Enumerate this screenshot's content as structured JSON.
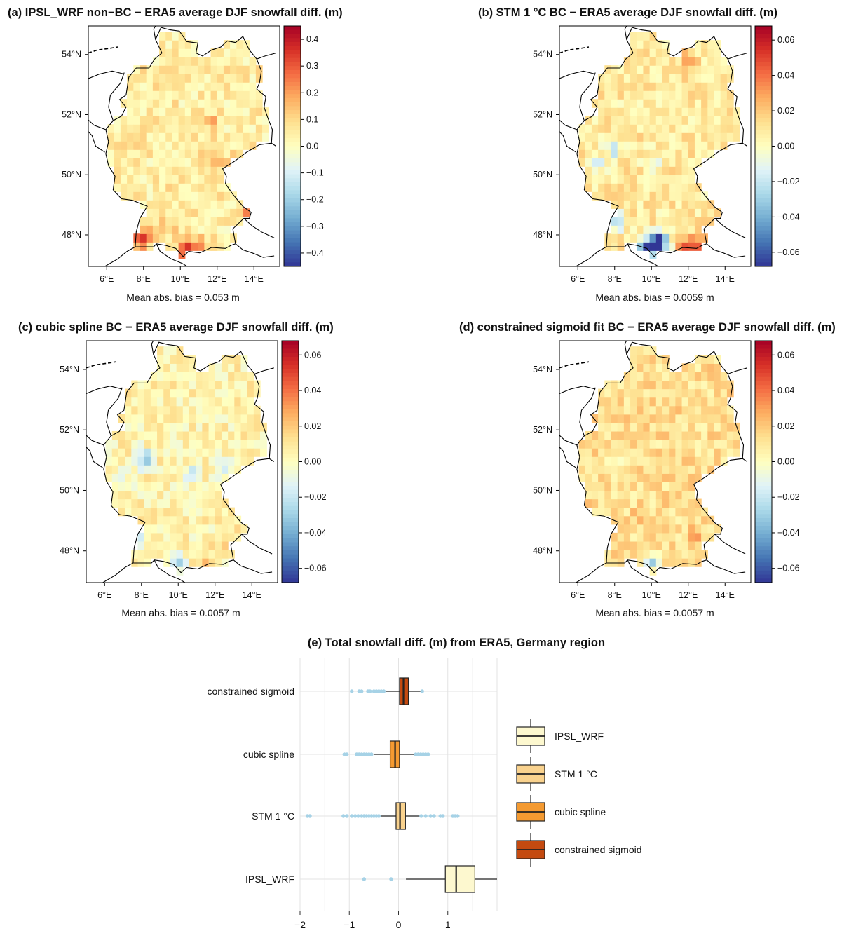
{
  "chart_data": [
    {
      "type": "heatmap",
      "panel": "a",
      "title": "(a) IPSL_WRF non−BC − ERA5 average DJF snowfall diff. (m)",
      "x_ticks": [
        "6°E",
        "8°E",
        "10°E",
        "12°E",
        "14°E"
      ],
      "y_ticks": [
        "48°N",
        "50°N",
        "52°N",
        "54°N"
      ],
      "colorbar_ticks": [
        0.4,
        0.3,
        0.2,
        0.1,
        0.0,
        -0.1,
        -0.2,
        -0.3,
        -0.4
      ],
      "colorbar_labels": [
        "0.4",
        "0.3",
        "0.2",
        "0.1",
        "0.0",
        "−0.1",
        "−0.2",
        "−0.3",
        "−0.4"
      ],
      "colorbar_range": [
        -0.45,
        0.45
      ],
      "summary": "Mean abs. bias = 0.053 m",
      "base_value": 0.05,
      "hotspots": [
        {
          "lon": 10.3,
          "lat": 47.55,
          "value": 0.42
        },
        {
          "lon": 11.1,
          "lat": 47.55,
          "value": 0.28
        },
        {
          "lon": 8.0,
          "lat": 48.0,
          "value": 0.22
        },
        {
          "lon": 7.85,
          "lat": 47.75,
          "value": 0.25
        },
        {
          "lon": 13.6,
          "lat": 48.8,
          "value": 0.2
        },
        {
          "lon": 11.7,
          "lat": 51.75,
          "value": 0.15
        },
        {
          "lon": 12.6,
          "lat": 50.3,
          "value": 0.15
        },
        {
          "lon": 11.5,
          "lat": 50.55,
          "value": 0.12
        },
        {
          "lon": 9.4,
          "lat": 48.3,
          "value": 0.12
        }
      ]
    },
    {
      "type": "heatmap",
      "panel": "b",
      "title": "(b) STM 1 °C BC − ERA5 average DJF snowfall diff. (m)",
      "x_ticks": [
        "6°E",
        "8°E",
        "10°E",
        "12°E",
        "14°E"
      ],
      "y_ticks": [
        "48°N",
        "50°N",
        "52°N",
        "54°N"
      ],
      "colorbar_ticks": [
        0.06,
        0.04,
        0.02,
        0.0,
        -0.02,
        -0.04,
        -0.06
      ],
      "colorbar_labels": [
        "0.06",
        "0.04",
        "0.02",
        "0.00",
        "−0.02",
        "−0.04",
        "−0.06"
      ],
      "colorbar_range": [
        -0.068,
        0.068
      ],
      "summary": "Mean abs. bias = 0.0059 m",
      "base_value": 0.009,
      "hotspots": [
        {
          "lon": 10.2,
          "lat": 47.6,
          "value": -0.065
        },
        {
          "lon": 10.5,
          "lat": 47.8,
          "value": -0.045
        },
        {
          "lon": 9.6,
          "lat": 47.65,
          "value": -0.04
        },
        {
          "lon": 11.8,
          "lat": 47.6,
          "value": 0.04
        },
        {
          "lon": 12.5,
          "lat": 47.65,
          "value": 0.035
        },
        {
          "lon": 8.15,
          "lat": 48.5,
          "value": -0.03
        },
        {
          "lon": 8.0,
          "lat": 50.9,
          "value": -0.02
        },
        {
          "lon": 7.0,
          "lat": 50.4,
          "value": -0.012
        },
        {
          "lon": 10.2,
          "lat": 50.4,
          "value": -0.012
        },
        {
          "lon": 12.0,
          "lat": 53.8,
          "value": 0.025
        }
      ]
    },
    {
      "type": "heatmap",
      "panel": "c",
      "title": "(c) cubic spline BC − ERA5 average DJF snowfall diff. (m)",
      "x_ticks": [
        "6°E",
        "8°E",
        "10°E",
        "12°E",
        "14°E"
      ],
      "y_ticks": [
        "48°N",
        "50°N",
        "52°N",
        "54°N"
      ],
      "colorbar_ticks": [
        0.06,
        0.04,
        0.02,
        0.0,
        -0.02,
        -0.04,
        -0.06
      ],
      "colorbar_labels": [
        "0.06",
        "0.04",
        "0.02",
        "0.00",
        "−0.02",
        "−0.04",
        "−0.06"
      ],
      "colorbar_range": [
        -0.068,
        0.068
      ],
      "summary": "Mean abs. bias = 0.0057 m",
      "base_value": 0.005,
      "hotspots": [
        {
          "lon": 8.1,
          "lat": 51.05,
          "value": -0.03
        },
        {
          "lon": 10.0,
          "lat": 47.6,
          "value": -0.035
        },
        {
          "lon": 7.9,
          "lat": 48.4,
          "value": -0.022
        },
        {
          "lon": 6.9,
          "lat": 50.3,
          "value": -0.018
        },
        {
          "lon": 10.8,
          "lat": 50.6,
          "value": -0.015
        },
        {
          "lon": 12.3,
          "lat": 50.8,
          "value": -0.015
        },
        {
          "lon": 11.5,
          "lat": 47.7,
          "value": 0.025
        },
        {
          "lon": 12.8,
          "lat": 48.5,
          "value": 0.02
        }
      ]
    },
    {
      "type": "heatmap",
      "panel": "d",
      "title": "(d) constrained sigmoid fit BC − ERA5 average DJF snowfall diff. (m)",
      "x_ticks": [
        "6°E",
        "8°E",
        "10°E",
        "12°E",
        "14°E"
      ],
      "y_ticks": [
        "48°N",
        "50°N",
        "52°N",
        "54°N"
      ],
      "colorbar_ticks": [
        0.06,
        0.04,
        0.02,
        0.0,
        -0.02,
        -0.04,
        -0.06
      ],
      "colorbar_labels": [
        "0.06",
        "0.04",
        "0.02",
        "0.00",
        "−0.02",
        "−0.04",
        "−0.06"
      ],
      "colorbar_range": [
        -0.068,
        0.068
      ],
      "summary": "Mean abs. bias = 0.0057 m",
      "base_value": 0.013,
      "hotspots": [
        {
          "lon": 10.1,
          "lat": 47.65,
          "value": -0.03
        },
        {
          "lon": 8.2,
          "lat": 51.0,
          "value": -0.012
        },
        {
          "lon": 12.5,
          "lat": 48.6,
          "value": 0.025
        },
        {
          "lon": 9.5,
          "lat": 49.2,
          "value": 0.022
        },
        {
          "lon": 13.0,
          "lat": 49.3,
          "value": 0.02
        },
        {
          "lon": 11.0,
          "lat": 52.5,
          "value": 0.02
        }
      ]
    },
    {
      "type": "box",
      "panel": "e",
      "title": "(e) Total snowfall diff. (m) from ERA5, Germany region",
      "x_ticks": [
        -2,
        -1,
        0,
        1
      ],
      "x_tick_labels": [
        "−2",
        "−1",
        "0",
        "1"
      ],
      "xlim": [
        -2,
        2
      ],
      "outlier_color": "#a6d2e6",
      "series": [
        {
          "name": "constrained sigmoid",
          "color": "#c44a10",
          "whisker_low": -0.25,
          "q1": 0.02,
          "median": 0.1,
          "q3": 0.2,
          "whisker_high": 0.45,
          "outliers": [
            -0.95,
            -0.8,
            -0.75,
            -0.62,
            -0.58,
            -0.5,
            -0.45,
            -0.4,
            -0.35,
            -0.3,
            0.48
          ]
        },
        {
          "name": "cubic spline",
          "color": "#f49a31",
          "whisker_low": -0.5,
          "q1": -0.17,
          "median": -0.07,
          "q3": 0.02,
          "whisker_high": 0.32,
          "outliers": [
            -1.1,
            -1.05,
            -0.85,
            -0.8,
            -0.75,
            -0.7,
            -0.65,
            -0.6,
            -0.55,
            0.35,
            0.4,
            0.45,
            0.5,
            0.55,
            0.6
          ]
        },
        {
          "name": "STM 1 °C",
          "color": "#f9d28e",
          "whisker_low": -0.35,
          "q1": -0.05,
          "median": 0.03,
          "q3": 0.14,
          "whisker_high": 0.43,
          "outliers": [
            -1.85,
            -1.8,
            -1.12,
            -1.05,
            -0.95,
            -0.88,
            -0.82,
            -0.75,
            -0.7,
            -0.65,
            -0.6,
            -0.55,
            -0.5,
            -0.45,
            -0.4,
            0.46,
            0.55,
            0.65,
            0.72,
            0.85,
            0.9,
            1.1,
            1.15,
            1.2
          ]
        },
        {
          "name": "IPSL_WRF",
          "color": "#fdf8cf",
          "whisker_low": 0.15,
          "q1": 0.95,
          "median": 1.17,
          "q3": 1.55,
          "whisker_high": 2.0,
          "outliers": [
            -0.7,
            -0.15
          ]
        }
      ],
      "legend": [
        "IPSL_WRF",
        "STM 1 °C",
        "cubic spline",
        "constrained sigmoid"
      ]
    }
  ]
}
